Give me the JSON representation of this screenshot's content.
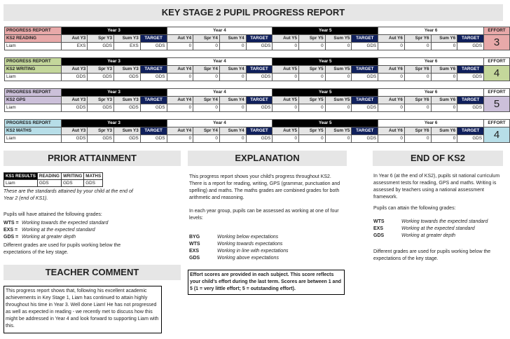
{
  "header": {
    "title": "KEY STAGE 2 PUPIL PROGRESS REPORT"
  },
  "progress_tables": [
    {
      "label": "PROGRESS REPORT",
      "subject": "KS2 READING",
      "color": "#e8a9a9",
      "years": [
        "Year 3",
        "Year 4",
        "Year 5",
        "Year 6"
      ],
      "columns": [
        "Aut Y3",
        "Spr Y3",
        "Sum Y3",
        "TARGET",
        "Aut Y4",
        "Spr Y4",
        "Sum Y4",
        "TARGET",
        "Aut Y5",
        "Spr Y5",
        "Sum Y5",
        "TARGET",
        "Aut Y6",
        "Spr Y6",
        "Sum Y6",
        "TARGET"
      ],
      "effort_label": "EFFORT",
      "pupil": "Liam",
      "cells": [
        "EXS",
        "GDS",
        "EXS",
        "GDS",
        0,
        0,
        0,
        "GDS",
        0,
        0,
        0,
        "GDS",
        0,
        0,
        0,
        "GDS"
      ],
      "effort": 3
    },
    {
      "label": "PROGRESS REPORT",
      "subject": "KS2 WRITING",
      "color": "#c4d79b",
      "years": [
        "Year 3",
        "Year 4",
        "Year 5",
        "Year 6"
      ],
      "columns": [
        "Aut Y3",
        "Spr Y3",
        "Sum Y3",
        "TARGET",
        "Aut Y4",
        "Spr Y4",
        "Sum Y4",
        "TARGET",
        "Aut Y5",
        "Spr Y5",
        "Sum Y5",
        "TARGET",
        "Aut Y6",
        "Spr Y6",
        "Sum Y6",
        "TARGET"
      ],
      "effort_label": "EFFORT",
      "pupil": "Liam",
      "cells": [
        "GDS",
        "GDS",
        "GDS",
        "GDS",
        0,
        0,
        0,
        "GDS",
        0,
        0,
        0,
        "GDS",
        0,
        0,
        0,
        "GDS"
      ],
      "effort": 4
    },
    {
      "label": "PROGRESS REPORT",
      "subject": "KS2 GPS",
      "color": "#ccc0da",
      "years": [
        "Year 3",
        "Year 4",
        "Year 5",
        "Year 6"
      ],
      "columns": [
        "Aut Y3",
        "Spr Y3",
        "Sum Y3",
        "TARGET",
        "Aut Y4",
        "Spr Y4",
        "Sum Y4",
        "TARGET",
        "Aut Y5",
        "Spr Y5",
        "Sum Y5",
        "TARGET",
        "Aut Y6",
        "Spr Y6",
        "Sum Y6",
        "TARGET"
      ],
      "effort_label": "EFFORT",
      "pupil": "Liam",
      "cells": [
        "GDS",
        "GDS",
        "GDS",
        "GDS",
        0,
        0,
        0,
        "GDS",
        0,
        0,
        0,
        "GDS",
        0,
        0,
        0,
        "GDS"
      ],
      "effort": 5
    },
    {
      "label": "PROGRESS REPORT",
      "subject": "KS2 MATHS",
      "color": "#b7dee8",
      "years": [
        "Year 3",
        "Year 4",
        "Year 5",
        "Year 6"
      ],
      "columns": [
        "Aut Y3",
        "Spr Y3",
        "Sum Y3",
        "TARGET",
        "Aut Y4",
        "Spr Y4",
        "Sum Y4",
        "TARGET",
        "Aut Y5",
        "Spr Y5",
        "Sum Y5",
        "TARGET",
        "Aut Y6",
        "Spr Y6",
        "Sum Y6",
        "TARGET"
      ],
      "effort_label": "EFFORT",
      "pupil": "Liam",
      "cells": [
        "GDS",
        "GDS",
        "GDS",
        "GDS",
        0,
        0,
        0,
        "GDS",
        0,
        0,
        0,
        "GDS",
        0,
        0,
        0,
        "GDS"
      ],
      "effort": 4
    }
  ],
  "prior_attainment": {
    "heading": "PRIOR ATTAINMENT",
    "table": {
      "header": [
        "KS1 RESULTS",
        "READING",
        "WRITING",
        "MATHS"
      ],
      "row": [
        "Liam",
        "GDS",
        "GDS",
        "GDS"
      ]
    },
    "note": "These are the standards attained by your child at the end of Year 2 (end of KS1).",
    "intro": "Pupils will have attained the following grades:",
    "grades": [
      {
        "code": "WTS =",
        "text": "Working towards the expected standard"
      },
      {
        "code": "EXS =",
        "text": "Working at the expected standard"
      },
      {
        "code": "GDS =",
        "text": "Working at greater depth"
      }
    ],
    "footer": "Different grades are used for pupils working below the expectations of the key stage."
  },
  "teacher_comment": {
    "heading": "TEACHER COMMENT",
    "text": "This progress report shows that, following his excellent academic achievements in Key Stage 1, Liam has continued to attain highly throughout his time in Year 3. Well done Liam! He has not progressed as well as expected in reading - we recently met to discuss how this might be addressed in Year 4 and look forward to supporting Liam with this."
  },
  "explanation": {
    "heading": "EXPLANATION",
    "paragraphs": [
      "This progress report shows your child's progress throughout KS2. There is a report for reading, writing, GPS (grammar, punctuation and spelling) and maths. The maths grades are combined grades for both arithmetic and reasoning.",
      "In each year group, pupils can be assessed as working at one of four levels:"
    ],
    "levels": [
      {
        "code": "BYG",
        "text": "Working below expectations"
      },
      {
        "code": "WTS",
        "text": "Working towards expectations"
      },
      {
        "code": "EXS",
        "text": "Working in line with expectations"
      },
      {
        "code": "GDS",
        "text": "Working above expectations"
      }
    ],
    "effort_note": "Effort scores are provided in each subject. This score reflects your child's effort during the last term. Scores are between 1 and 5 (1 = very little effort; 5 = outstanding effort)."
  },
  "end_of_ks2": {
    "heading": "END OF KS2",
    "paragraph": "In Year 6 (at the end of KS2), pupils sit national curriculum assessment tests for reading, GPS and maths. Writing is assessed by teachers using a national assessment framework.",
    "intro": "Pupils can attain the following grades:",
    "grades": [
      {
        "code": "WTS",
        "text": "Working towards the expected standard"
      },
      {
        "code": "EXS",
        "text": "Working at the expected standard"
      },
      {
        "code": "GDS",
        "text": "Working at greater depth"
      }
    ],
    "footer": "Different grades are used for pupils working below the expectations of the key stage."
  }
}
